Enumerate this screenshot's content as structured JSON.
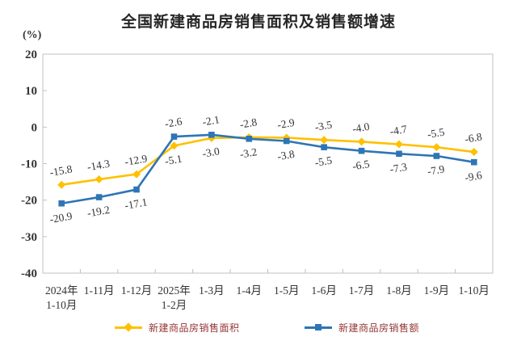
{
  "title": "全国新建商品房销售面积及销售额增速",
  "y_unit_label": "(%)",
  "colors": {
    "area_series": "#FFC000",
    "value_series": "#2E75B6",
    "axis_line": "#c0c0c0",
    "axis_text": "#333333",
    "data_label_text": "#333333",
    "legend_text": "#943634",
    "title_text": "#262626"
  },
  "legend": {
    "items": [
      {
        "label": "新建商品房销售面积",
        "color": "#FFC000",
        "marker": "diamond"
      },
      {
        "label": "新建商品房销售额",
        "color": "#2E75B6",
        "marker": "square"
      }
    ]
  },
  "chart_data": {
    "type": "line",
    "title": "全国新建商品房销售面积及销售额增速",
    "ylabel": "(%)",
    "categories": [
      [
        "2024年",
        "1-10月"
      ],
      [
        "1-11月"
      ],
      [
        "1-12月"
      ],
      [
        "2025年",
        "1-2月"
      ],
      [
        "1-3月"
      ],
      [
        "1-4月"
      ],
      [
        "1-5月"
      ],
      [
        "1-6月"
      ],
      [
        "1-7月"
      ],
      [
        "1-8月"
      ],
      [
        "1-9月"
      ],
      [
        "1-10月"
      ]
    ],
    "series": [
      {
        "name": "新建商品房销售面积",
        "color": "#FFC000",
        "marker": "diamond",
        "values": [
          -15.8,
          -14.3,
          -12.9,
          -5.1,
          -3.0,
          -2.8,
          -2.9,
          -3.5,
          -4.0,
          -4.7,
          -5.5,
          -6.8
        ]
      },
      {
        "name": "新建商品房销售额",
        "color": "#2E75B6",
        "marker": "square",
        "values": [
          -20.9,
          -19.2,
          -17.1,
          -2.6,
          -2.1,
          -3.2,
          -3.8,
          -5.5,
          -6.5,
          -7.3,
          -7.9,
          -9.6
        ]
      }
    ],
    "ylim": [
      -40,
      20
    ],
    "yticks": [
      20,
      10,
      0,
      -10,
      -20,
      -30,
      -40
    ],
    "grid": false,
    "data_labels": true,
    "data_label_rotation_deg": -10,
    "legend_position": "bottom"
  }
}
